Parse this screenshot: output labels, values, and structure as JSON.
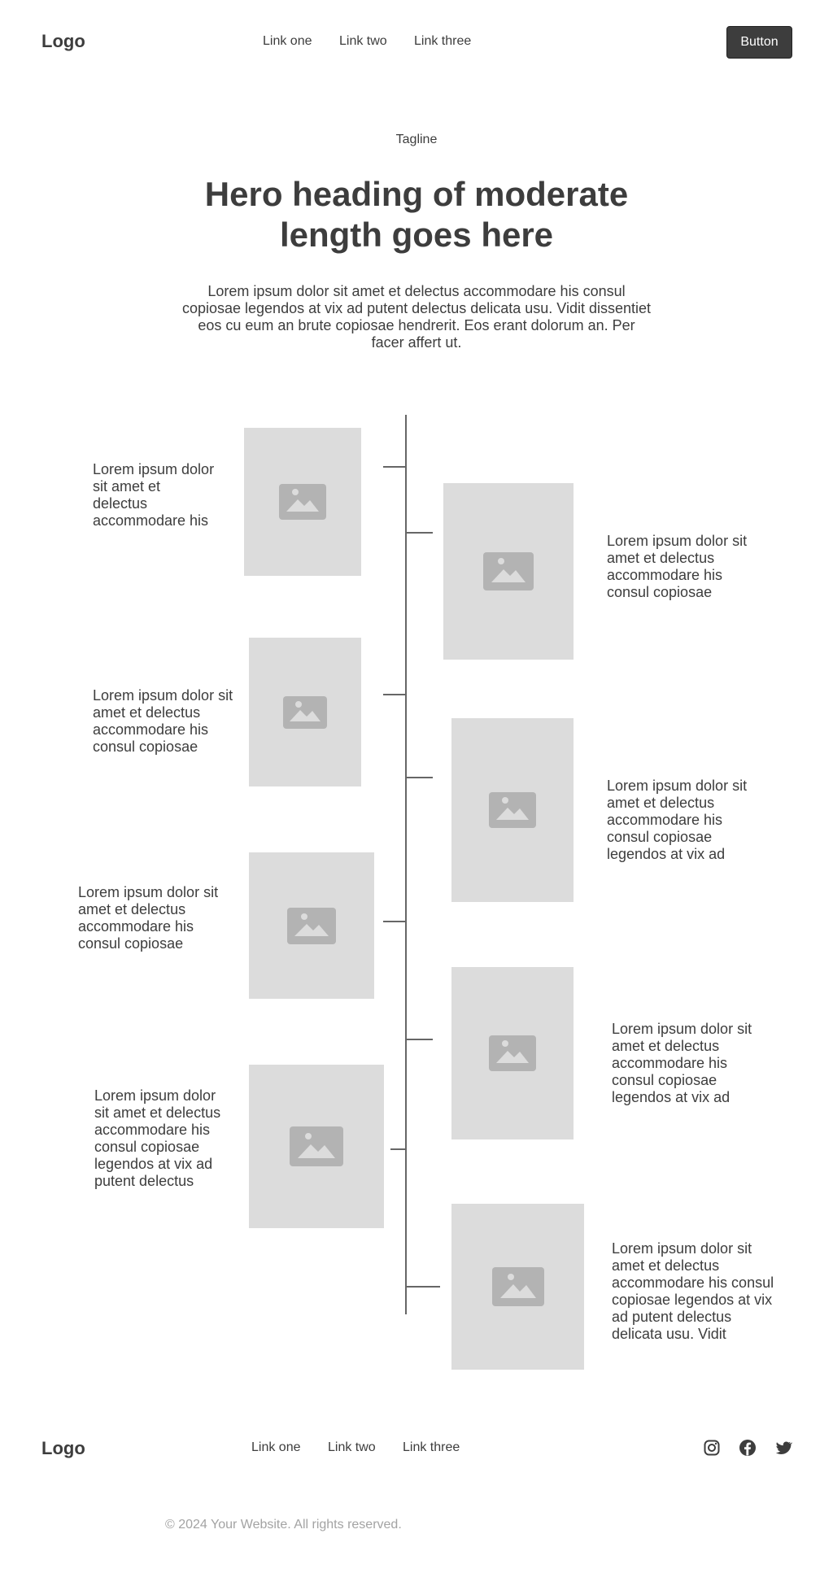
{
  "header": {
    "logo": "Logo",
    "nav": [
      "Link one",
      "Link two",
      "Link three"
    ],
    "button_label": "Button"
  },
  "hero": {
    "tagline": "Tagline",
    "title": "Hero heading of moderate length goes here",
    "text": "Lorem ipsum dolor sit amet et delectus accommodare his consul copiosae legendos at vix ad putent delectus delicata usu. Vidit dissentiet eos cu eum an brute copiosae hendrerit. Eos erant dolorum an. Per facer affert ut."
  },
  "timeline": {
    "items": [
      {
        "side": "left",
        "text": "Lorem ipsum dolor sit amet et delectus accommodare his",
        "image": "image-placeholder-icon"
      },
      {
        "side": "right",
        "text": "Lorem ipsum dolor sit amet et delectus accommodare his consul copiosae",
        "image": "image-placeholder-icon"
      },
      {
        "side": "left",
        "text": "Lorem ipsum dolor sit amet et delectus accommodare his consul copiosae",
        "image": "image-placeholder-icon"
      },
      {
        "side": "right",
        "text": "Lorem ipsum dolor sit amet et delectus accommodare his consul copiosae legendos at vix ad",
        "image": "image-placeholder-icon"
      },
      {
        "side": "left",
        "text": "Lorem ipsum dolor sit amet et delectus accommodare his consul copiosae",
        "image": "image-placeholder-icon"
      },
      {
        "side": "right",
        "text": "Lorem ipsum dolor sit amet et delectus accommodare his consul copiosae legendos at vix ad",
        "image": "image-placeholder-icon"
      },
      {
        "side": "left",
        "text": "Lorem ipsum dolor sit amet et delectus accommodare his consul copiosae legendos at vix ad putent delectus",
        "image": "image-placeholder-icon"
      },
      {
        "side": "right",
        "text": "Lorem ipsum dolor sit amet et delectus accommodare his consul copiosae legendos at vix ad putent delectus delicata usu. Vidit",
        "image": "image-placeholder-icon"
      }
    ]
  },
  "footer": {
    "logo": "Logo",
    "nav": [
      "Link one",
      "Link two",
      "Link three"
    ],
    "social": [
      "instagram-icon",
      "facebook-icon",
      "twitter-icon"
    ],
    "copyright": "© 2024 Your Website. All rights reserved."
  },
  "colors": {
    "text": "#3d3d3d",
    "button_bg": "#3d3d3d",
    "placeholder_bg": "#dcdcdc",
    "placeholder_icon": "#b3b3b3",
    "muted": "#a3a3a3"
  }
}
